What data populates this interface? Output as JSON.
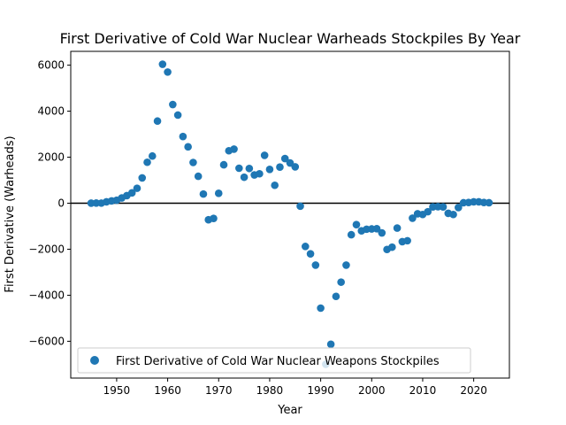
{
  "chart_data": {
    "type": "scatter",
    "title": "First Derivative of Cold War Nuclear Warheads Stockpiles By Year",
    "xlabel": "Year",
    "ylabel": "First Derivative (Warheads)",
    "xlim": [
      1941,
      2027
    ],
    "ylim": [
      -7600,
      6600
    ],
    "xticks": [
      1950,
      1960,
      1970,
      1980,
      1990,
      2000,
      2010,
      2020
    ],
    "yticks": [
      -6000,
      -4000,
      -2000,
      0,
      2000,
      4000,
      6000
    ],
    "xtick_labels": [
      "1950",
      "1960",
      "1970",
      "1980",
      "1990",
      "2000",
      "2010",
      "2020"
    ],
    "ytick_labels": [
      "−6000",
      "−4000",
      "−2000",
      "0",
      "2000",
      "4000",
      "6000"
    ],
    "reference_line": {
      "y": 0,
      "color": "#000000"
    },
    "legend": {
      "position": "lower-left"
    },
    "series": [
      {
        "name": "First Derivative of Cold War Nuclear Weapons Stockpiles",
        "color": "#1f77b4",
        "x": [
          1945,
          1946,
          1947,
          1948,
          1949,
          1950,
          1951,
          1952,
          1953,
          1954,
          1955,
          1956,
          1957,
          1958,
          1959,
          1960,
          1961,
          1962,
          1963,
          1964,
          1965,
          1966,
          1967,
          1968,
          1969,
          1970,
          1971,
          1972,
          1973,
          1974,
          1975,
          1976,
          1977,
          1978,
          1979,
          1980,
          1981,
          1982,
          1983,
          1984,
          1985,
          1986,
          1987,
          1988,
          1989,
          1990,
          1991,
          1992,
          1993,
          1994,
          1995,
          1996,
          1997,
          1998,
          1999,
          2000,
          2001,
          2002,
          2003,
          2004,
          2005,
          2006,
          2007,
          2008,
          2009,
          2010,
          2011,
          2012,
          2013,
          2014,
          2015,
          2016,
          2017,
          2018,
          2019,
          2020,
          2021,
          2022,
          2023
        ],
        "y": [
          2,
          7,
          5,
          60,
          100,
          130,
          230,
          330,
          450,
          650,
          1100,
          1780,
          2050,
          3570,
          6040,
          5700,
          4290,
          3830,
          2900,
          2450,
          1770,
          1170,
          400,
          -720,
          -660,
          430,
          1670,
          2280,
          2350,
          1520,
          1130,
          1510,
          1230,
          1280,
          2080,
          1470,
          780,
          1570,
          1940,
          1750,
          1580,
          -130,
          -1880,
          -2200,
          -2690,
          -4560,
          -7000,
          -6130,
          -4050,
          -3430,
          -2690,
          -1370,
          -930,
          -1200,
          -1130,
          -1120,
          -1110,
          -1290,
          -2010,
          -1910,
          -1080,
          -1670,
          -1630,
          -650,
          -460,
          -490,
          -370,
          -160,
          -150,
          -160,
          -440,
          -490,
          -190,
          20,
          30,
          60,
          60,
          30,
          20
        ]
      }
    ]
  }
}
